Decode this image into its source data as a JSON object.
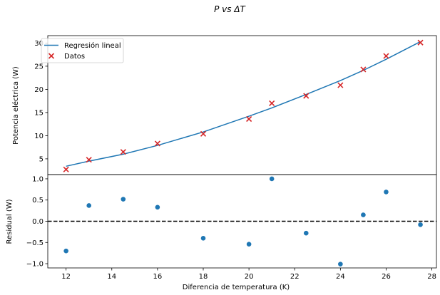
{
  "chart_data": {
    "type": "scatter",
    "title": "P vs ΔT",
    "grid": false,
    "colors": {
      "fit": "#1f77b4",
      "data": "#d62728",
      "residual": "#1f77b4",
      "zero": "#000000"
    },
    "top": {
      "ylabel": "Potencia eléctrica (W)",
      "ylim": [
        1.6,
        31.6
      ],
      "yticks": [
        5,
        10,
        15,
        20,
        25,
        30
      ],
      "legend_position": "top-left",
      "series": [
        {
          "name": "Regresión lineal",
          "kind": "line",
          "x": [
            12,
            13,
            14.5,
            16,
            18,
            20,
            21,
            22.5,
            24,
            25,
            26,
            27.5
          ],
          "y": [
            3.4,
            4.5,
            6.0,
            7.9,
            10.8,
            14.2,
            16.0,
            18.9,
            21.9,
            24.1,
            26.5,
            30.3
          ]
        },
        {
          "name": "Datos",
          "kind": "scatter",
          "marker": "x",
          "x": [
            12,
            13,
            14.5,
            16,
            18,
            20,
            21,
            22.5,
            24,
            25,
            26,
            27.5
          ],
          "y": [
            2.7,
            4.8,
            6.5,
            8.3,
            10.4,
            13.6,
            17.0,
            18.6,
            20.9,
            24.3,
            27.2,
            30.1
          ]
        }
      ]
    },
    "bottom": {
      "ylabel": "Residual (W)",
      "xlabel": "Diferencia de temperatura (K)",
      "ylim": [
        -1.1,
        1.1
      ],
      "yticks": [
        -1.0,
        -0.5,
        0.0,
        0.5,
        1.0
      ],
      "ytick_labels": [
        "−1.0",
        "−0.5",
        "0.0",
        "0.5",
        "1.0"
      ],
      "series": [
        {
          "kind": "scatter",
          "marker": "o",
          "x": [
            12,
            13,
            14.5,
            16,
            18,
            20,
            21,
            22.5,
            24,
            25,
            26,
            27.5
          ],
          "y": [
            -0.7,
            0.37,
            0.52,
            0.33,
            -0.4,
            -0.54,
            1.0,
            -0.28,
            -1.01,
            0.15,
            0.69,
            -0.08
          ]
        }
      ],
      "reference_line": {
        "y": 0,
        "style": "dashed"
      }
    },
    "xlim": [
      11.2,
      28.2
    ],
    "xticks": [
      12,
      14,
      16,
      18,
      20,
      22,
      24,
      26,
      28
    ]
  }
}
